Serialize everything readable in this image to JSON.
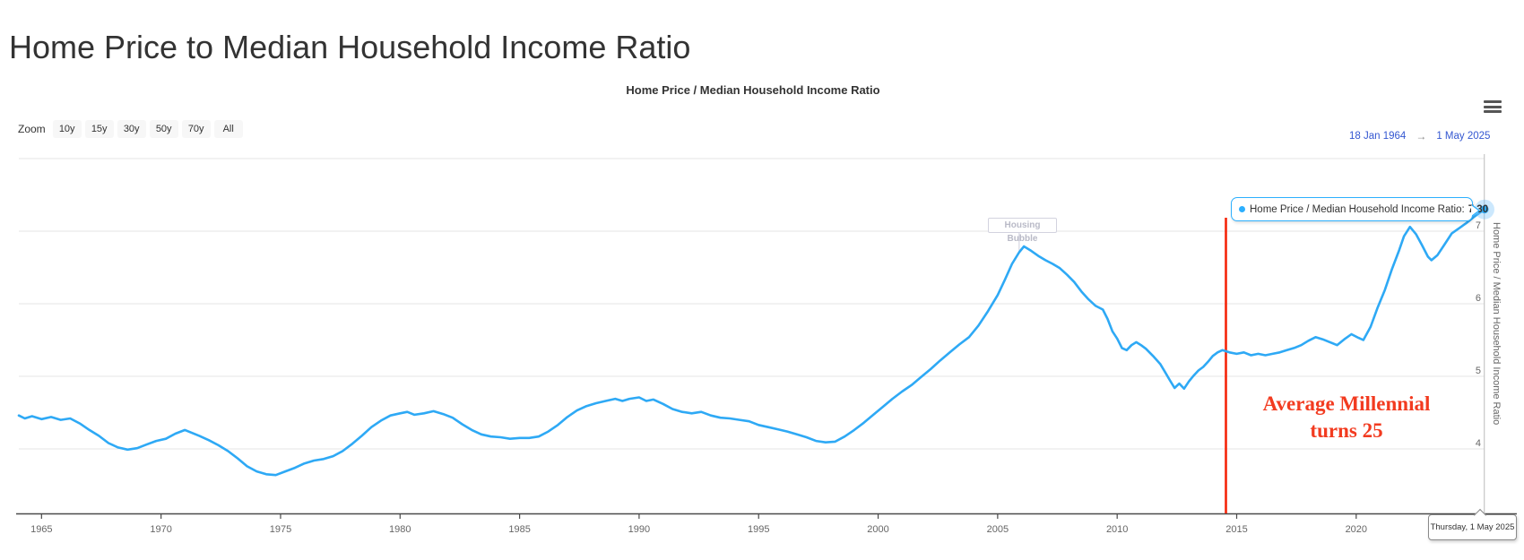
{
  "page": {
    "title": "Home Price to Median Household Income Ratio"
  },
  "chart": {
    "title": "Home Price / Median Household Income Ratio",
    "y_axis_title": "Home Price / Median Household Income Ratio"
  },
  "toolbar": {
    "zoom_label": "Zoom",
    "buttons": [
      "10y",
      "15y",
      "30y",
      "50y",
      "70y",
      "All"
    ],
    "range_from": "18 Jan 1964",
    "range_arrow": "→",
    "range_to": "1 May 2025"
  },
  "tooltip": {
    "label": "Home Price / Median Household Income Ratio:",
    "value": "7.30"
  },
  "crosshair_label": "Thursday, 1 May 2025",
  "annotations": {
    "flag_label": "Housing Bubble",
    "event_line_1": "Average Millennial",
    "event_line_2": "turns 25"
  },
  "colors": {
    "series": "#2ea9f5",
    "tooltip_border": "#2caffe",
    "event_red": "#f5250a",
    "event_text_red": "#f23b20",
    "grid": "#e6e6e6",
    "axis": "#4a4a4a",
    "tick_text": "#666666",
    "crosshair": "#c6c6c6",
    "range_text": "#3457d1"
  },
  "chart_data": {
    "type": "line",
    "title": "Home Price / Median Household Income Ratio",
    "ylabel": "Home Price / Median Household Income Ratio",
    "x_range": [
      1964.05,
      2025.37
    ],
    "y_range": [
      3.111,
      8.062
    ],
    "x_ticks": [
      1965,
      1970,
      1975,
      1980,
      1985,
      1990,
      1995,
      2000,
      2005,
      2010,
      2015,
      2020,
      2025
    ],
    "y_ticks": [
      7,
      6,
      5,
      4
    ],
    "y_grid": [
      4,
      5,
      6,
      7,
      8
    ],
    "grid": true,
    "legend": false,
    "event_line_x": 2014.55,
    "flag_x": 2005.9,
    "last_point": {
      "x": 2025.37,
      "y": 7.3,
      "date": "Thursday, 1 May 2025"
    },
    "series": [
      {
        "name": "Home Price / Median Household Income Ratio",
        "points": [
          [
            1964.05,
            4.46
          ],
          [
            1964.3,
            4.42
          ],
          [
            1964.6,
            4.45
          ],
          [
            1965.0,
            4.41
          ],
          [
            1965.4,
            4.44
          ],
          [
            1965.8,
            4.4
          ],
          [
            1966.2,
            4.42
          ],
          [
            1966.6,
            4.35
          ],
          [
            1967.0,
            4.26
          ],
          [
            1967.4,
            4.18
          ],
          [
            1967.8,
            4.08
          ],
          [
            1968.2,
            4.02
          ],
          [
            1968.6,
            3.99
          ],
          [
            1969.0,
            4.01
          ],
          [
            1969.4,
            4.06
          ],
          [
            1969.8,
            4.11
          ],
          [
            1970.2,
            4.14
          ],
          [
            1970.6,
            4.21
          ],
          [
            1971.0,
            4.26
          ],
          [
            1971.3,
            4.22
          ],
          [
            1971.6,
            4.18
          ],
          [
            1972.0,
            4.12
          ],
          [
            1972.4,
            4.05
          ],
          [
            1972.8,
            3.97
          ],
          [
            1973.2,
            3.87
          ],
          [
            1973.6,
            3.76
          ],
          [
            1974.0,
            3.69
          ],
          [
            1974.4,
            3.65
          ],
          [
            1974.8,
            3.64
          ],
          [
            1975.2,
            3.69
          ],
          [
            1975.6,
            3.74
          ],
          [
            1976.0,
            3.8
          ],
          [
            1976.4,
            3.84
          ],
          [
            1976.8,
            3.86
          ],
          [
            1977.2,
            3.9
          ],
          [
            1977.6,
            3.97
          ],
          [
            1978.0,
            4.07
          ],
          [
            1978.4,
            4.18
          ],
          [
            1978.8,
            4.3
          ],
          [
            1979.2,
            4.39
          ],
          [
            1979.6,
            4.46
          ],
          [
            1980.0,
            4.49
          ],
          [
            1980.3,
            4.51
          ],
          [
            1980.6,
            4.47
          ],
          [
            1981.0,
            4.49
          ],
          [
            1981.4,
            4.52
          ],
          [
            1981.8,
            4.48
          ],
          [
            1982.2,
            4.43
          ],
          [
            1982.6,
            4.34
          ],
          [
            1983.0,
            4.26
          ],
          [
            1983.4,
            4.2
          ],
          [
            1983.8,
            4.17
          ],
          [
            1984.2,
            4.16
          ],
          [
            1984.6,
            4.14
          ],
          [
            1985.0,
            4.15
          ],
          [
            1985.4,
            4.15
          ],
          [
            1985.8,
            4.17
          ],
          [
            1986.2,
            4.24
          ],
          [
            1986.6,
            4.33
          ],
          [
            1987.0,
            4.44
          ],
          [
            1987.4,
            4.53
          ],
          [
            1987.8,
            4.59
          ],
          [
            1988.2,
            4.63
          ],
          [
            1988.6,
            4.66
          ],
          [
            1989.0,
            4.69
          ],
          [
            1989.3,
            4.66
          ],
          [
            1989.6,
            4.69
          ],
          [
            1990.0,
            4.71
          ],
          [
            1990.3,
            4.66
          ],
          [
            1990.6,
            4.68
          ],
          [
            1991.0,
            4.62
          ],
          [
            1991.4,
            4.55
          ],
          [
            1991.8,
            4.51
          ],
          [
            1992.2,
            4.49
          ],
          [
            1992.6,
            4.51
          ],
          [
            1993.0,
            4.46
          ],
          [
            1993.4,
            4.43
          ],
          [
            1993.8,
            4.42
          ],
          [
            1994.2,
            4.4
          ],
          [
            1994.6,
            4.38
          ],
          [
            1995.0,
            4.33
          ],
          [
            1995.4,
            4.3
          ],
          [
            1995.8,
            4.27
          ],
          [
            1996.2,
            4.24
          ],
          [
            1996.6,
            4.2
          ],
          [
            1997.0,
            4.16
          ],
          [
            1997.4,
            4.11
          ],
          [
            1997.8,
            4.09
          ],
          [
            1998.2,
            4.1
          ],
          [
            1998.6,
            4.17
          ],
          [
            1999.0,
            4.26
          ],
          [
            1999.4,
            4.36
          ],
          [
            1999.8,
            4.47
          ],
          [
            2000.2,
            4.58
          ],
          [
            2000.6,
            4.69
          ],
          [
            2001.0,
            4.79
          ],
          [
            2001.4,
            4.88
          ],
          [
            2001.8,
            4.99
          ],
          [
            2002.2,
            5.1
          ],
          [
            2002.6,
            5.22
          ],
          [
            2003.0,
            5.33
          ],
          [
            2003.4,
            5.44
          ],
          [
            2003.8,
            5.54
          ],
          [
            2004.2,
            5.7
          ],
          [
            2004.6,
            5.9
          ],
          [
            2005.0,
            6.12
          ],
          [
            2005.3,
            6.33
          ],
          [
            2005.6,
            6.55
          ],
          [
            2005.9,
            6.71
          ],
          [
            2006.1,
            6.79
          ],
          [
            2006.4,
            6.73
          ],
          [
            2006.7,
            6.66
          ],
          [
            2007.0,
            6.6
          ],
          [
            2007.3,
            6.55
          ],
          [
            2007.6,
            6.49
          ],
          [
            2007.9,
            6.4
          ],
          [
            2008.2,
            6.3
          ],
          [
            2008.5,
            6.17
          ],
          [
            2008.8,
            6.06
          ],
          [
            2009.1,
            5.97
          ],
          [
            2009.4,
            5.92
          ],
          [
            2009.6,
            5.79
          ],
          [
            2009.8,
            5.62
          ],
          [
            2010.0,
            5.52
          ],
          [
            2010.2,
            5.39
          ],
          [
            2010.4,
            5.36
          ],
          [
            2010.6,
            5.43
          ],
          [
            2010.8,
            5.47
          ],
          [
            2011.0,
            5.43
          ],
          [
            2011.2,
            5.38
          ],
          [
            2011.5,
            5.28
          ],
          [
            2011.8,
            5.17
          ],
          [
            2012.0,
            5.06
          ],
          [
            2012.2,
            4.95
          ],
          [
            2012.4,
            4.84
          ],
          [
            2012.6,
            4.9
          ],
          [
            2012.8,
            4.83
          ],
          [
            2013.0,
            4.93
          ],
          [
            2013.2,
            5.01
          ],
          [
            2013.4,
            5.08
          ],
          [
            2013.6,
            5.13
          ],
          [
            2013.8,
            5.2
          ],
          [
            2014.0,
            5.28
          ],
          [
            2014.2,
            5.33
          ],
          [
            2014.4,
            5.36
          ],
          [
            2014.7,
            5.33
          ],
          [
            2015.0,
            5.31
          ],
          [
            2015.3,
            5.33
          ],
          [
            2015.6,
            5.29
          ],
          [
            2015.9,
            5.31
          ],
          [
            2016.2,
            5.29
          ],
          [
            2016.5,
            5.31
          ],
          [
            2016.8,
            5.33
          ],
          [
            2017.1,
            5.36
          ],
          [
            2017.4,
            5.39
          ],
          [
            2017.7,
            5.43
          ],
          [
            2018.0,
            5.49
          ],
          [
            2018.3,
            5.54
          ],
          [
            2018.6,
            5.51
          ],
          [
            2018.9,
            5.47
          ],
          [
            2019.2,
            5.43
          ],
          [
            2019.5,
            5.51
          ],
          [
            2019.8,
            5.58
          ],
          [
            2020.1,
            5.53
          ],
          [
            2020.3,
            5.5
          ],
          [
            2020.6,
            5.68
          ],
          [
            2020.9,
            5.95
          ],
          [
            2021.2,
            6.19
          ],
          [
            2021.5,
            6.48
          ],
          [
            2021.8,
            6.74
          ],
          [
            2022.0,
            6.93
          ],
          [
            2022.25,
            7.06
          ],
          [
            2022.5,
            6.96
          ],
          [
            2022.75,
            6.81
          ],
          [
            2023.0,
            6.65
          ],
          [
            2023.15,
            6.6
          ],
          [
            2023.4,
            6.67
          ],
          [
            2023.7,
            6.82
          ],
          [
            2024.0,
            6.97
          ],
          [
            2024.3,
            7.04
          ],
          [
            2024.6,
            7.11
          ],
          [
            2024.9,
            7.19
          ],
          [
            2025.15,
            7.25
          ],
          [
            2025.37,
            7.3
          ]
        ]
      }
    ]
  }
}
